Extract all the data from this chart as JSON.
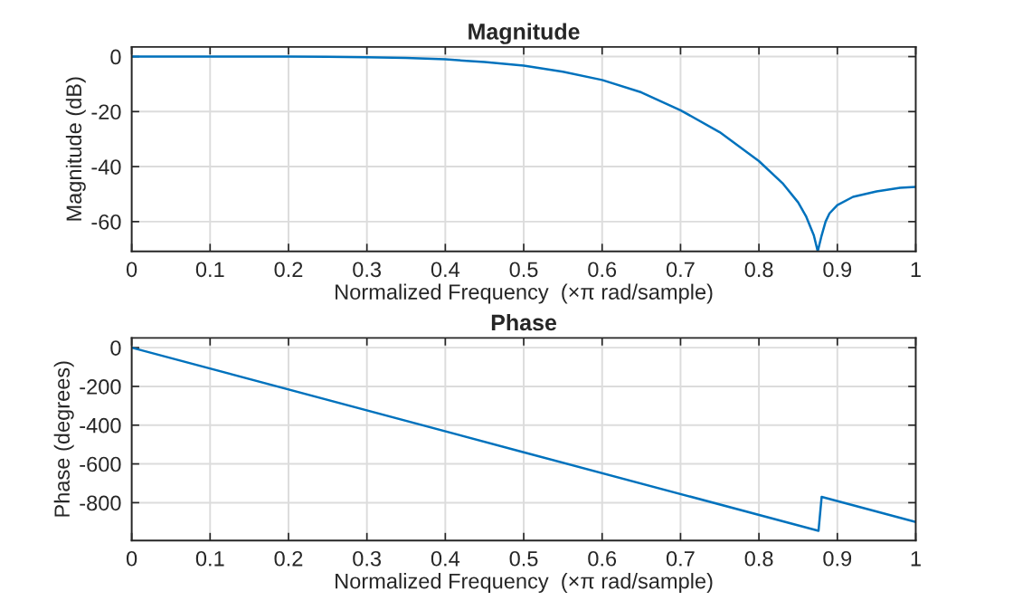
{
  "chart_data": [
    {
      "type": "line",
      "title": "Magnitude",
      "xlabel": "Normalized Frequency  (×π rad/sample)",
      "ylabel": "Magnitude (dB)",
      "x": [
        0,
        0.05,
        0.1,
        0.15,
        0.2,
        0.25,
        0.3,
        0.35,
        0.4,
        0.45,
        0.5,
        0.55,
        0.6,
        0.65,
        0.7,
        0.75,
        0.8,
        0.83,
        0.85,
        0.86,
        0.87,
        0.875,
        0.88,
        0.885,
        0.89,
        0.9,
        0.92,
        0.95,
        0.98,
        1
      ],
      "series": [
        {
          "color": "#0072bd",
          "values": [
            0,
            0,
            0,
            0,
            0,
            -0.1,
            -0.2,
            -0.5,
            -1,
            -2,
            -3.3,
            -5.5,
            -8.5,
            -13,
            -19.5,
            -27.5,
            -38,
            -46,
            -53,
            -58,
            -65,
            -70.8,
            -65,
            -60,
            -57,
            -54,
            -51,
            -49,
            -47.7,
            -47.4
          ]
        }
      ],
      "xlim": [
        0,
        1
      ],
      "xticks": [
        0,
        0.1,
        0.2,
        0.3,
        0.4,
        0.5,
        0.6,
        0.7,
        0.8,
        0.9,
        1
      ],
      "ylim": [
        -70.8,
        3.5
      ],
      "yticks": [
        -60,
        -40,
        -20,
        0
      ],
      "grid": true,
      "legend": false
    },
    {
      "type": "line",
      "title": "Phase",
      "xlabel": "Normalized Frequency  (×π rad/sample)",
      "ylabel": "Phase (degrees)",
      "x": [
        0,
        0.5,
        0.876,
        0.88,
        1
      ],
      "series": [
        {
          "color": "#0072bd",
          "values": [
            0,
            -540,
            -945,
            -770,
            -900
          ]
        }
      ],
      "xlim": [
        0,
        1
      ],
      "xticks": [
        0,
        0.1,
        0.2,
        0.3,
        0.4,
        0.5,
        0.6,
        0.7,
        0.8,
        0.9,
        1
      ],
      "ylim": [
        -995,
        50
      ],
      "yticks": [
        -800,
        -600,
        -400,
        -200,
        0
      ],
      "grid": true,
      "legend": false
    }
  ]
}
